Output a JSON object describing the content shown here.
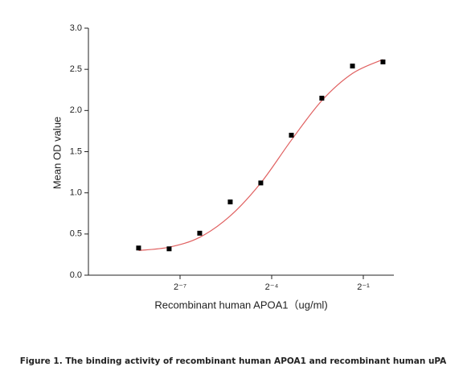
{
  "chart_data": {
    "type": "scatter",
    "x_label": "Recombinant human  APOA1（ug/ml)",
    "y_label": "Mean OD value",
    "caption": "Figure 1. The binding activity of recombinant human APOA1 and recombinant human uPA",
    "xscale": "log2",
    "xlim": [
      0.0009765625,
      1
    ],
    "xticks": [
      {
        "value": 0.0078125,
        "label": "2⁻⁷"
      },
      {
        "value": 0.0625,
        "label": "2⁻⁴"
      },
      {
        "value": 0.5,
        "label": "2⁻¹"
      }
    ],
    "ylim": [
      0,
      3
    ],
    "yticks": [
      {
        "value": 0,
        "label": "0.0"
      },
      0.5,
      {
        "value": 1,
        "label": "1.0"
      },
      1.5,
      {
        "value": 2,
        "label": "2.0"
      },
      2.5,
      {
        "value": 3,
        "label": "3.0"
      }
    ],
    "x": [
      0.00305,
      0.0061,
      0.0122,
      0.0244,
      0.0488,
      0.0977,
      0.195,
      0.391,
      0.781
    ],
    "values": [
      0.33,
      0.32,
      0.51,
      0.89,
      1.12,
      1.7,
      2.15,
      2.54,
      2.59
    ],
    "color": "#000000",
    "curve": {
      "color": "#e06060",
      "x": [
        0.00305,
        0.0061,
        0.0122,
        0.0244,
        0.0488,
        0.0977,
        0.195,
        0.391,
        0.781
      ],
      "values": [
        0.3,
        0.34,
        0.46,
        0.72,
        1.12,
        1.64,
        2.12,
        2.45,
        2.62
      ]
    }
  }
}
